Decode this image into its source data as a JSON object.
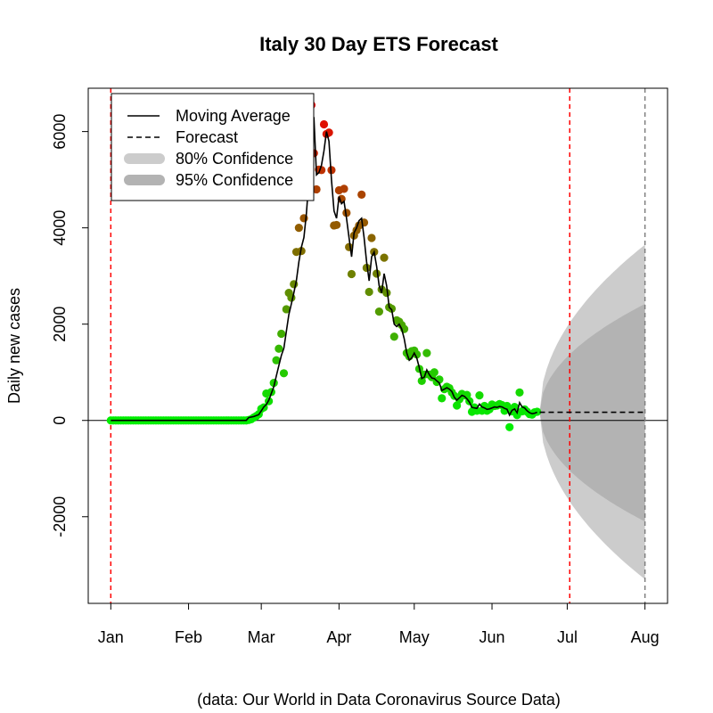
{
  "chart_data": {
    "type": "line",
    "title": "Italy 30 Day ETS Forecast",
    "ylabel": "Daily new cases",
    "xlabel": "",
    "caption": "(data: Our World in Data Coronavirus Source Data)",
    "x_ticks": [
      {
        "label": "Jan",
        "day": 0
      },
      {
        "label": "Feb",
        "day": 31
      },
      {
        "label": "Mar",
        "day": 60
      },
      {
        "label": "Apr",
        "day": 91
      },
      {
        "label": "May",
        "day": 121
      },
      {
        "label": "Jun",
        "day": 152
      },
      {
        "label": "Jul",
        "day": 182
      },
      {
        "label": "Aug",
        "day": 213
      }
    ],
    "y_ticks": [
      -2000,
      0,
      2000,
      4000,
      6000
    ],
    "xlim": [
      -9,
      222
    ],
    "ylim": [
      -3800,
      6900
    ],
    "vlines": [
      {
        "day": 0,
        "color": "#ff0000"
      },
      {
        "day": 183,
        "color": "#ff0000"
      },
      {
        "day": 213,
        "color": "#808080"
      }
    ],
    "legend": {
      "placement": "top-left",
      "items": [
        {
          "label": "Moving Average",
          "style": "line"
        },
        {
          "label": "Forecast",
          "style": "dashed"
        },
        {
          "label": "80% Confidence",
          "style": "band80"
        },
        {
          "label": "95% Confidence",
          "style": "band95"
        }
      ]
    },
    "colors": {
      "low": "#00ee00",
      "high": "#ee0000",
      "moving_average": "#000000",
      "forecast": "#000000",
      "band_outer": "#cccccc",
      "band_inner": "#b3b3b3"
    },
    "daily_points": [
      [
        55,
        10
      ],
      [
        56,
        25
      ],
      [
        57,
        60
      ],
      [
        58,
        90
      ],
      [
        59,
        130
      ],
      [
        60,
        240
      ],
      [
        61,
        270
      ],
      [
        62,
        560
      ],
      [
        63,
        400
      ],
      [
        64,
        590
      ],
      [
        65,
        780
      ],
      [
        66,
        1250
      ],
      [
        67,
        1490
      ],
      [
        68,
        1800
      ],
      [
        69,
        980
      ],
      [
        70,
        2310
      ],
      [
        71,
        2650
      ],
      [
        72,
        2550
      ],
      [
        73,
        2830
      ],
      [
        74,
        3500
      ],
      [
        75,
        4000
      ],
      [
        76,
        3520
      ],
      [
        77,
        4200
      ],
      [
        78,
        5300
      ],
      [
        79,
        5900
      ],
      [
        80,
        6550
      ],
      [
        81,
        5550
      ],
      [
        82,
        4800
      ],
      [
        83,
        5210
      ],
      [
        84,
        5200
      ],
      [
        85,
        6150
      ],
      [
        86,
        5950
      ],
      [
        87,
        5980
      ],
      [
        88,
        5200
      ],
      [
        89,
        4050
      ],
      [
        90,
        4060
      ],
      [
        91,
        4780
      ],
      [
        92,
        4600
      ],
      [
        93,
        4810
      ],
      [
        94,
        4310
      ],
      [
        95,
        3600
      ],
      [
        96,
        3040
      ],
      [
        97,
        3840
      ],
      [
        98,
        3950
      ],
      [
        99,
        4050
      ],
      [
        100,
        4690
      ],
      [
        101,
        4110
      ],
      [
        102,
        3170
      ],
      [
        103,
        2670
      ],
      [
        104,
        3790
      ],
      [
        105,
        3500
      ],
      [
        106,
        3050
      ],
      [
        107,
        2260
      ],
      [
        108,
        2720
      ],
      [
        109,
        3380
      ],
      [
        110,
        2650
      ],
      [
        111,
        2350
      ],
      [
        112,
        2320
      ],
      [
        113,
        1740
      ],
      [
        114,
        2080
      ],
      [
        115,
        2050
      ],
      [
        116,
        1980
      ],
      [
        117,
        1900
      ],
      [
        118,
        1400
      ],
      [
        119,
        1330
      ],
      [
        120,
        1440
      ],
      [
        121,
        1450
      ],
      [
        122,
        1370
      ],
      [
        123,
        1070
      ],
      [
        124,
        820
      ],
      [
        125,
        950
      ],
      [
        126,
        1400
      ],
      [
        127,
        950
      ],
      [
        128,
        900
      ],
      [
        129,
        1000
      ],
      [
        130,
        800
      ],
      [
        131,
        850
      ],
      [
        132,
        460
      ],
      [
        133,
        650
      ],
      [
        134,
        700
      ],
      [
        135,
        670
      ],
      [
        136,
        580
      ],
      [
        137,
        510
      ],
      [
        138,
        310
      ],
      [
        139,
        440
      ],
      [
        140,
        550
      ],
      [
        141,
        520
      ],
      [
        142,
        530
      ],
      [
        143,
        400
      ],
      [
        144,
        180
      ],
      [
        145,
        270
      ],
      [
        146,
        200
      ],
      [
        147,
        520
      ],
      [
        148,
        200
      ],
      [
        149,
        300
      ],
      [
        150,
        200
      ],
      [
        151,
        230
      ],
      [
        152,
        330
      ],
      [
        153,
        300
      ],
      [
        154,
        310
      ],
      [
        155,
        340
      ],
      [
        156,
        320
      ],
      [
        157,
        200
      ],
      [
        158,
        300
      ],
      [
        159,
        -140
      ],
      [
        160,
        190
      ],
      [
        161,
        280
      ],
      [
        162,
        110
      ],
      [
        163,
        580
      ],
      [
        164,
        190
      ],
      [
        165,
        230
      ],
      [
        166,
        180
      ],
      [
        167,
        130
      ],
      [
        168,
        120
      ],
      [
        169,
        170
      ],
      [
        170,
        180
      ]
    ],
    "moving_average": [
      [
        0,
        0
      ],
      [
        54,
        0
      ],
      [
        55,
        60
      ],
      [
        57,
        80
      ],
      [
        59,
        120
      ],
      [
        60,
        200
      ],
      [
        61,
        280
      ],
      [
        62,
        330
      ],
      [
        63,
        420
      ],
      [
        64,
        560
      ],
      [
        65,
        700
      ],
      [
        66,
        920
      ],
      [
        67,
        1140
      ],
      [
        68,
        1350
      ],
      [
        69,
        1500
      ],
      [
        70,
        1850
      ],
      [
        71,
        2200
      ],
      [
        72,
        2420
      ],
      [
        73,
        2650
      ],
      [
        74,
        2900
      ],
      [
        75,
        3300
      ],
      [
        76,
        3600
      ],
      [
        77,
        3800
      ],
      [
        78,
        4300
      ],
      [
        79,
        5000
      ],
      [
        80,
        5900
      ],
      [
        81,
        6300
      ],
      [
        82,
        5100
      ],
      [
        83,
        5150
      ],
      [
        84,
        5300
      ],
      [
        85,
        5600
      ],
      [
        86,
        6000
      ],
      [
        87,
        5800
      ],
      [
        88,
        5000
      ],
      [
        89,
        4350
      ],
      [
        90,
        4200
      ],
      [
        91,
        4650
      ],
      [
        92,
        4500
      ],
      [
        93,
        4550
      ],
      [
        94,
        4200
      ],
      [
        95,
        3800
      ],
      [
        96,
        3400
      ],
      [
        97,
        3900
      ],
      [
        98,
        4000
      ],
      [
        99,
        4150
      ],
      [
        100,
        4200
      ],
      [
        101,
        3800
      ],
      [
        102,
        3300
      ],
      [
        103,
        2900
      ],
      [
        104,
        3400
      ],
      [
        105,
        3500
      ],
      [
        106,
        3200
      ],
      [
        107,
        2800
      ],
      [
        108,
        2650
      ],
      [
        109,
        3050
      ],
      [
        110,
        2800
      ],
      [
        111,
        2350
      ],
      [
        112,
        2300
      ],
      [
        113,
        2000
      ],
      [
        114,
        1950
      ],
      [
        115,
        2000
      ],
      [
        116,
        1900
      ],
      [
        117,
        1700
      ],
      [
        118,
        1400
      ],
      [
        119,
        1250
      ],
      [
        120,
        1300
      ],
      [
        121,
        1400
      ],
      [
        122,
        1300
      ],
      [
        123,
        1100
      ],
      [
        124,
        870
      ],
      [
        125,
        900
      ],
      [
        126,
        1050
      ],
      [
        127,
        950
      ],
      [
        128,
        880
      ],
      [
        129,
        870
      ],
      [
        130,
        820
      ],
      [
        131,
        780
      ],
      [
        132,
        620
      ],
      [
        133,
        650
      ],
      [
        134,
        680
      ],
      [
        135,
        650
      ],
      [
        136,
        600
      ],
      [
        137,
        480
      ],
      [
        138,
        420
      ],
      [
        139,
        470
      ],
      [
        140,
        520
      ],
      [
        141,
        500
      ],
      [
        142,
        450
      ],
      [
        143,
        380
      ],
      [
        144,
        270
      ],
      [
        145,
        260
      ],
      [
        146,
        250
      ],
      [
        147,
        340
      ],
      [
        148,
        280
      ],
      [
        149,
        260
      ],
      [
        150,
        230
      ],
      [
        151,
        240
      ],
      [
        152,
        260
      ],
      [
        153,
        280
      ],
      [
        154,
        270
      ],
      [
        155,
        290
      ],
      [
        156,
        280
      ],
      [
        157,
        250
      ],
      [
        158,
        230
      ],
      [
        159,
        110
      ],
      [
        160,
        210
      ],
      [
        161,
        240
      ],
      [
        162,
        160
      ],
      [
        163,
        370
      ],
      [
        164,
        280
      ],
      [
        165,
        260
      ],
      [
        166,
        200
      ],
      [
        167,
        160
      ],
      [
        168,
        140
      ],
      [
        169,
        150
      ],
      [
        170,
        170
      ]
    ],
    "forecast": {
      "start_day": 171,
      "end_day": 213,
      "value": 170,
      "band80_end": [
        -2100,
        2420
      ],
      "band95_end": [
        -3300,
        3650
      ]
    }
  }
}
